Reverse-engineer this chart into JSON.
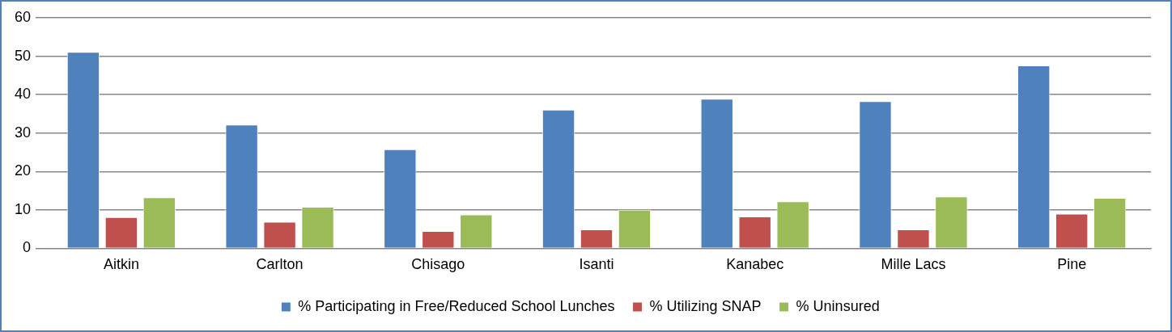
{
  "chart_data": {
    "type": "bar",
    "categories": [
      "Aitkin",
      "Carlton",
      "Chisago",
      "Isanti",
      "Kanabec",
      "Mille Lacs",
      "Pine"
    ],
    "series": [
      {
        "name": "% Participating in Free/Reduced School Lunches",
        "color": "#4f81bd",
        "values": [
          51.1,
          32.2,
          25.8,
          36.1,
          38.9,
          38.3,
          47.6
        ]
      },
      {
        "name": "% Utilizing SNAP",
        "color": "#c0504d",
        "values": [
          8.1,
          6.9,
          4.5,
          4.9,
          8.3,
          4.9,
          9.0
        ]
      },
      {
        "name": "% Uninsured",
        "color": "#9bbb59",
        "values": [
          13.3,
          10.8,
          8.8,
          10.0,
          12.2,
          13.5,
          13.1
        ]
      }
    ],
    "ylim": [
      0,
      60
    ],
    "yticks": [
      0,
      10,
      20,
      30,
      40,
      50,
      60
    ],
    "grid": "y",
    "legend": "bottom"
  }
}
